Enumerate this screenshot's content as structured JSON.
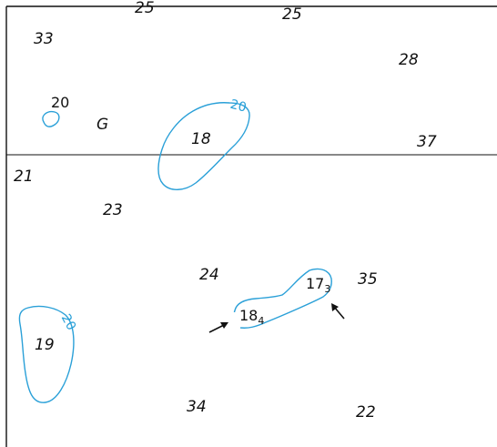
{
  "soundings": [
    {
      "id": "s-top-left-partial",
      "label": "25"
    },
    {
      "id": "s-top-25",
      "label": "25"
    },
    {
      "id": "s-33",
      "label": "33"
    },
    {
      "id": "s-28",
      "label": "28"
    },
    {
      "id": "s-37",
      "label": "37"
    },
    {
      "id": "s-21",
      "label": "21"
    },
    {
      "id": "s-23",
      "label": "23"
    },
    {
      "id": "s-24",
      "label": "24"
    },
    {
      "id": "s-35",
      "label": "35"
    },
    {
      "id": "s-19",
      "label": "19"
    },
    {
      "id": "s-34",
      "label": "34"
    },
    {
      "id": "s-22",
      "label": "22"
    },
    {
      "id": "s-18",
      "label": "18"
    }
  ],
  "upright_soundings": [
    {
      "id": "u-20",
      "label": "20"
    },
    {
      "id": "u-18-4",
      "main": "18",
      "sub": "4"
    },
    {
      "id": "u-17-3",
      "main": "17",
      "sub": "3"
    }
  ],
  "seabed_letter": "G",
  "contour_labels": [
    {
      "id": "c-upper",
      "label": "20"
    },
    {
      "id": "c-lower-left",
      "label": "20"
    }
  ],
  "colors": {
    "contour": "#2aa0d8",
    "text": "#111111",
    "line": "#111111",
    "arrow": "#111111"
  },
  "icons": [
    "arrow-icon",
    "arrow-icon"
  ]
}
